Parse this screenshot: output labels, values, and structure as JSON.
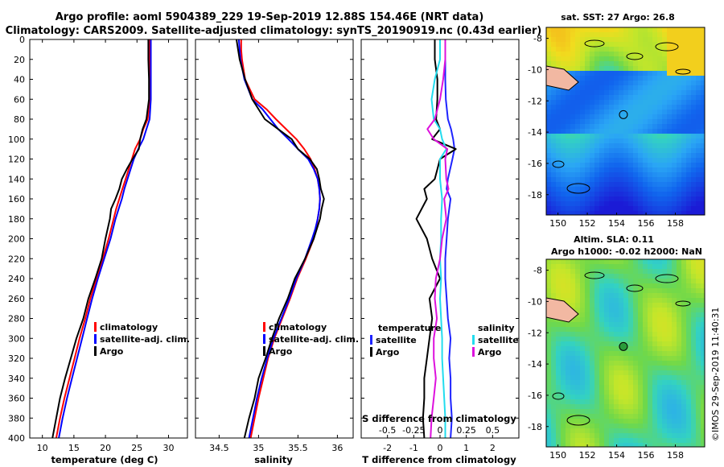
{
  "title": {
    "line1": "Argo profile: aoml 5904389_229 19-Sep-2019 12.88S 154.46E (NRT data)",
    "line2": "Climatology: CARS2009. Satellite-adjusted climatology: synTS_20190919.nc (0.43d earlier)"
  },
  "colors": {
    "climatology": "#ff0000",
    "satellite": "#0000ff",
    "argo": "#000000",
    "sat_diff_T": "#1e24ff",
    "sat_diff_S": "#22dcee",
    "argo_diff_S": "#dd11dd",
    "land": "#f2b8a2"
  },
  "depth_ticks": [
    "0",
    "20",
    "40",
    "60",
    "80",
    "100",
    "120",
    "140",
    "160",
    "180",
    "200",
    "220",
    "240",
    "260",
    "280",
    "300",
    "320",
    "340",
    "360",
    "380",
    "400"
  ],
  "chart_data": [
    {
      "type": "line",
      "name": "temperature",
      "xlabel": "temperature (deg C)",
      "ylabel": "",
      "xlim": [
        8,
        33
      ],
      "ylim": [
        400,
        0
      ],
      "xticks": [
        "10",
        "15",
        "20",
        "25",
        "30"
      ],
      "legend": [
        "climatology",
        "satellite-adj. clim.",
        "Argo"
      ],
      "depth": [
        0,
        10,
        20,
        40,
        60,
        80,
        90,
        100,
        110,
        120,
        130,
        140,
        150,
        160,
        170,
        180,
        200,
        220,
        240,
        260,
        280,
        300,
        320,
        340,
        360,
        380,
        400
      ],
      "series": [
        {
          "name": "climatology",
          "color": "#ff0000",
          "values": [
            27.0,
            27.0,
            27.0,
            27.0,
            27.0,
            26.7,
            26.0,
            25.5,
            24.7,
            24.2,
            23.7,
            23.2,
            22.7,
            22.2,
            21.7,
            21.3,
            20.5,
            19.6,
            18.6,
            17.6,
            16.8,
            15.9,
            15.1,
            14.3,
            13.5,
            12.8,
            12.2
          ]
        },
        {
          "name": "satellite-adj. clim.",
          "color": "#0000ff",
          "values": [
            27.2,
            27.2,
            27.2,
            27.2,
            27.2,
            27.0,
            26.5,
            26.0,
            25.2,
            24.5,
            24.0,
            23.5,
            23.0,
            22.6,
            22.1,
            21.6,
            20.8,
            19.8,
            18.8,
            17.9,
            17.1,
            16.3,
            15.5,
            14.7,
            13.9,
            13.2,
            12.6
          ]
        },
        {
          "name": "Argo",
          "color": "#000000",
          "values": [
            26.8,
            26.8,
            26.8,
            26.9,
            26.9,
            26.5,
            25.9,
            25.5,
            25.3,
            24.3,
            23.4,
            22.6,
            22.2,
            21.6,
            20.9,
            20.7,
            20.0,
            19.4,
            18.4,
            17.3,
            16.5,
            15.4,
            14.5,
            13.6,
            12.8,
            12.2,
            11.6
          ]
        }
      ]
    },
    {
      "type": "line",
      "name": "salinity",
      "xlabel": "salinity",
      "ylabel": "",
      "xlim": [
        34.2,
        36.2
      ],
      "ylim": [
        400,
        0
      ],
      "xticks": [
        "34.5",
        "35",
        "35.5",
        "36"
      ],
      "legend": [
        "climatology",
        "satellite-adj. clim.",
        "Argo"
      ],
      "depth": [
        0,
        10,
        20,
        40,
        60,
        70,
        80,
        90,
        100,
        110,
        120,
        130,
        140,
        150,
        160,
        170,
        180,
        190,
        200,
        220,
        240,
        260,
        280,
        300,
        320,
        340,
        360,
        380,
        400
      ],
      "series": [
        {
          "name": "climatology",
          "color": "#ff0000",
          "values": [
            34.78,
            34.78,
            34.79,
            34.83,
            34.95,
            35.1,
            35.22,
            35.35,
            35.48,
            35.58,
            35.66,
            35.71,
            35.75,
            35.77,
            35.78,
            35.77,
            35.75,
            35.73,
            35.7,
            35.6,
            35.49,
            35.4,
            35.3,
            35.2,
            35.12,
            35.06,
            35.0,
            34.95,
            34.9
          ]
        },
        {
          "name": "satellite-adj. clim.",
          "color": "#0000ff",
          "values": [
            34.75,
            34.76,
            34.77,
            34.82,
            34.92,
            35.05,
            35.15,
            35.25,
            35.38,
            35.5,
            35.63,
            35.7,
            35.75,
            35.77,
            35.78,
            35.77,
            35.75,
            35.72,
            35.68,
            35.59,
            35.48,
            35.39,
            35.29,
            35.19,
            35.11,
            35.04,
            34.98,
            34.93,
            34.88
          ]
        },
        {
          "name": "Argo",
          "color": "#000000",
          "values": [
            34.72,
            34.74,
            34.76,
            34.83,
            34.92,
            35.0,
            35.08,
            35.25,
            35.42,
            35.5,
            35.65,
            35.74,
            35.77,
            35.79,
            35.83,
            35.8,
            35.78,
            35.74,
            35.7,
            35.59,
            35.46,
            35.37,
            35.26,
            35.17,
            35.09,
            35.0,
            34.95,
            34.88,
            34.82
          ]
        }
      ]
    },
    {
      "type": "line",
      "name": "difference",
      "xlabel": "T difference from climatology",
      "ylabel": "",
      "xlim": [
        -3,
        3
      ],
      "ylim": [
        400,
        0
      ],
      "xticks": [
        "-2",
        "-1",
        "0",
        "1",
        "2"
      ],
      "s_title": "S difference from climatology",
      "s_xticks": [
        "-0.5",
        "-0.25",
        "0",
        "0.25",
        "0.5"
      ],
      "s_xlim": [
        -0.75,
        0.75
      ],
      "legend_left": {
        "title": "temperature",
        "items": [
          "satellite",
          "Argo"
        ]
      },
      "legend_right": {
        "title": "salinity",
        "items": [
          "satellite",
          "Argo"
        ]
      },
      "depth": [
        0,
        20,
        40,
        60,
        80,
        90,
        100,
        110,
        120,
        140,
        150,
        160,
        180,
        200,
        220,
        240,
        260,
        280,
        300,
        320,
        340,
        360,
        380,
        400
      ],
      "series": [
        {
          "name": "temperature satellite",
          "color": "#1e24ff",
          "values": [
            0.2,
            0.2,
            0.2,
            0.22,
            0.3,
            0.42,
            0.5,
            0.55,
            0.47,
            0.3,
            0.25,
            0.4,
            0.3,
            0.25,
            0.2,
            0.2,
            0.25,
            0.3,
            0.4,
            0.35,
            0.4,
            0.4,
            0.45,
            0.4
          ]
        },
        {
          "name": "temperature Argo",
          "color": "#000000",
          "values": [
            -0.2,
            -0.2,
            -0.1,
            -0.1,
            -0.15,
            0.0,
            -0.3,
            0.6,
            0.0,
            -0.2,
            -0.6,
            -0.5,
            -0.9,
            -0.5,
            -0.3,
            0.0,
            -0.4,
            -0.3,
            -0.4,
            -0.5,
            -0.6,
            -0.6,
            -0.65,
            -0.6
          ]
        },
        {
          "name": "salinity satellite",
          "color": "#22dcee",
          "values": [
            0.0,
            0.0,
            -0.05,
            -0.08,
            -0.06,
            0.0,
            0.02,
            0.06,
            0.0,
            0.0,
            0.01,
            0.02,
            0.01,
            0.01,
            0.0,
            0.01,
            0.0,
            0.01,
            0.02,
            0.02,
            0.03,
            0.04,
            0.05,
            0.05
          ]
        },
        {
          "name": "salinity Argo",
          "color": "#dd11dd",
          "values": [
            0.05,
            0.05,
            0.03,
            0.0,
            -0.05,
            -0.12,
            -0.06,
            0.07,
            0.05,
            0.06,
            0.08,
            0.04,
            0.06,
            0.02,
            0.0,
            -0.04,
            -0.05,
            -0.03,
            -0.06,
            -0.06,
            -0.04,
            -0.06,
            -0.08,
            -0.09
          ]
        }
      ]
    },
    {
      "type": "heatmap",
      "name": "sst_map",
      "title": "sat. SST: 27 Argo: 26.8",
      "xticks": [
        "150",
        "152",
        "154",
        "156",
        "158"
      ],
      "yticks": [
        "-8",
        "-10",
        "-12",
        "-14",
        "-16",
        "-18"
      ],
      "xlim": [
        149.2,
        160.0
      ],
      "ylim": [
        -19.3,
        -7.3
      ],
      "argo_marker": {
        "lon": 154.46,
        "lat": -12.88
      }
    },
    {
      "type": "heatmap",
      "name": "sla_map",
      "title": "Altim. SLA: 0.11",
      "subtitle": "Argo h1000: -0.02 h2000: NaN",
      "xticks": [
        "150",
        "152",
        "154",
        "156",
        "158"
      ],
      "yticks": [
        "-8",
        "-10",
        "-12",
        "-14",
        "-16",
        "-18"
      ],
      "xlim": [
        149.2,
        160.0
      ],
      "ylim": [
        -19.3,
        -7.3
      ],
      "argo_marker": {
        "lon": 154.46,
        "lat": -12.88
      }
    }
  ],
  "imos_stamp": "©IMOS 29-Sep-2019 11:40:31"
}
